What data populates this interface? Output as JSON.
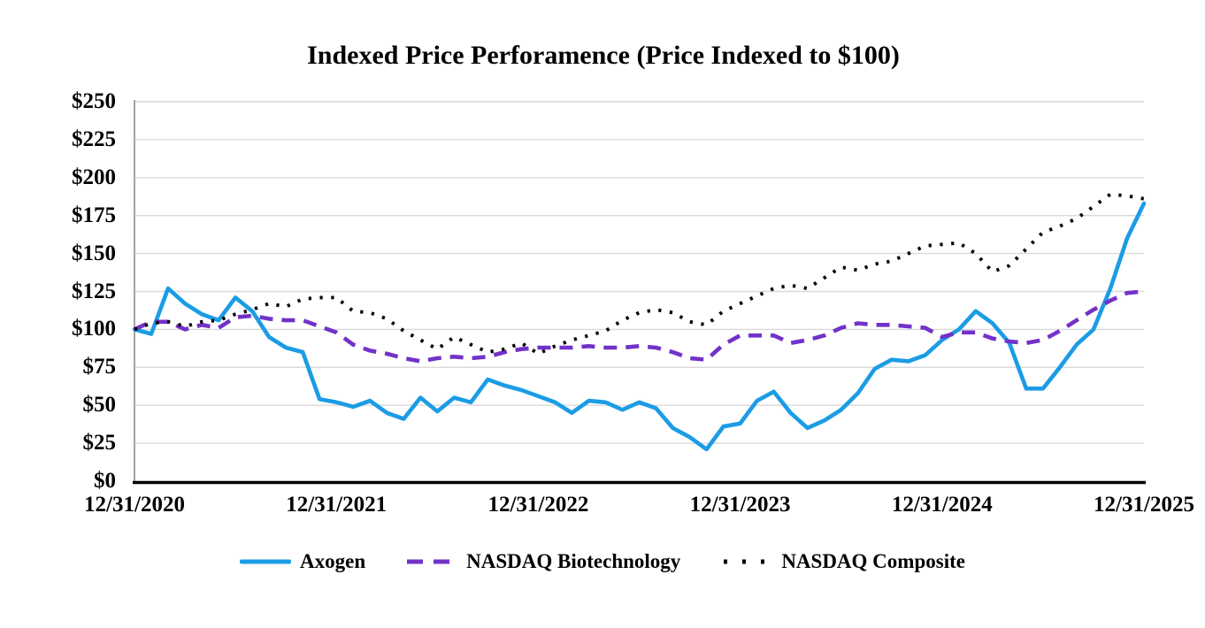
{
  "title": "Indexed Price Perforamence (Price Indexed to $100)",
  "colors": {
    "axogen": "#1B9CE5",
    "biotech": "#7232C9",
    "composite": "#000000",
    "gridline": "#D9D9D9",
    "left_spine": "#A3A3A3",
    "bottom_axis": "#000000"
  },
  "chart_data": {
    "type": "line",
    "title": "Indexed Price Perforamence (Price Indexed to $100)",
    "xlabel": "",
    "ylabel": "",
    "ylim": [
      0,
      250
    ],
    "y_tick_step": 25,
    "y_tick_labels": [
      "$0",
      "$25",
      "$50",
      "$75",
      "$100",
      "$125",
      "$150",
      "$175",
      "$200",
      "$225",
      "$250"
    ],
    "x_tick_labels": [
      "12/31/2020",
      "12/31/2021",
      "12/31/2022",
      "12/31/2023",
      "12/31/2024",
      "12/31/2025"
    ],
    "x_unit": "month",
    "points_per_series": 61,
    "grid": "horizontal",
    "legend_position": "bottom",
    "series": [
      {
        "name": "Axogen",
        "style": "solid",
        "color_key": "axogen",
        "values": [
          100,
          97,
          127,
          117,
          110,
          106,
          121,
          112,
          95,
          88,
          85,
          54,
          52,
          49,
          53,
          45,
          41,
          55,
          46,
          55,
          52,
          67,
          63,
          60,
          56,
          52,
          45,
          53,
          52,
          47,
          52,
          48,
          35,
          29,
          21,
          36,
          38,
          53,
          59,
          45,
          35,
          40,
          47,
          58,
          74,
          80,
          79,
          83,
          93,
          100,
          112,
          104,
          91,
          61,
          61,
          75,
          90,
          100,
          127,
          160,
          183
        ]
      },
      {
        "name": "NASDAQ Biotechnology",
        "style": "dashed",
        "color_key": "biotech",
        "values": [
          100,
          105,
          105,
          100,
          103,
          101,
          108,
          109,
          107,
          106,
          106,
          102,
          98,
          90,
          86,
          84,
          81,
          79,
          81,
          82,
          81,
          82,
          85,
          87,
          88,
          88,
          88,
          89,
          88,
          88,
          89,
          88,
          85,
          81,
          80,
          90,
          96,
          96,
          96,
          91,
          93,
          96,
          101,
          104,
          103,
          103,
          102,
          101,
          95,
          98,
          98,
          94,
          92,
          91,
          93,
          99,
          106,
          113,
          119,
          124,
          125
        ]
      },
      {
        "name": "NASDAQ Composite",
        "style": "dotted",
        "color_key": "composite",
        "values": [
          100,
          104,
          105,
          102,
          105,
          106,
          110,
          113,
          117,
          115,
          120,
          121,
          121,
          112,
          111,
          107,
          99,
          93,
          87,
          95,
          90,
          85,
          87,
          91,
          84,
          89,
          93,
          96,
          99,
          106,
          111,
          113,
          111,
          105,
          103,
          112,
          117,
          122,
          127,
          129,
          127,
          134,
          141,
          139,
          143,
          145,
          150,
          155,
          156,
          157,
          150,
          138,
          142,
          153,
          164,
          168,
          173,
          181,
          189,
          188,
          186
        ]
      }
    ]
  }
}
